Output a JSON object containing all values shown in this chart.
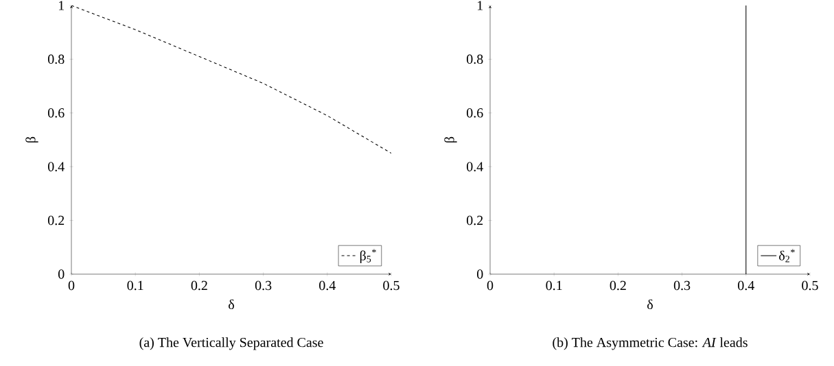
{
  "chart_data": [
    {
      "type": "line",
      "title": "(a) The Vertically Separated Case",
      "xlabel": "δ",
      "ylabel": "β",
      "x": [
        0,
        0.1,
        0.2,
        0.3,
        0.4,
        0.5
      ],
      "series": [
        {
          "name": "β$_{5}$$^{*}$",
          "color": "#000000",
          "line_style": "dashed",
          "values": [
            1,
            0.91,
            0.81,
            0.71,
            0.59,
            0.45
          ]
        }
      ],
      "xlim": [
        0,
        0.5
      ],
      "ylim": [
        0,
        1
      ],
      "xticks": [
        0,
        0.1,
        0.2,
        0.3,
        0.4,
        0.5
      ],
      "yticks": [
        0,
        0.2,
        0.4,
        0.6,
        0.8,
        1
      ],
      "legend": "bottom right",
      "grid": false,
      "marker": "none"
    },
    {
      "type": "line",
      "title": "(b) The Asymmetric Case: *AI* leads",
      "xlabel": "δ",
      "ylabel": "β",
      "ref_lines": [
        {
          "axis": "x",
          "value": 0.4,
          "label": "δ$_{2}$$^{*}$",
          "color": "#000000",
          "line_style": "solid"
        }
      ],
      "xlim": [
        0,
        0.5
      ],
      "ylim": [
        0,
        1
      ],
      "xticks": [
        0,
        0.1,
        0.2,
        0.3,
        0.4,
        0.5
      ],
      "yticks": [
        0,
        0.2,
        0.4,
        0.6,
        0.8,
        1
      ],
      "legend": "bottom right",
      "grid": false,
      "marker": "none"
    }
  ]
}
